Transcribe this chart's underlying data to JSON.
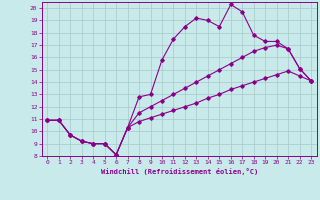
{
  "bg_color": "#c8eaea",
  "line_color": "#8b008b",
  "grid_color": "#a8c8c8",
  "xlabel": "Windchill (Refroidissement éolien,°C)",
  "xlabel_color": "#8b008b",
  "tick_color": "#8b008b",
  "xlim": [
    -0.5,
    23.5
  ],
  "ylim": [
    8,
    20.5
  ],
  "xticks": [
    0,
    1,
    2,
    3,
    4,
    5,
    6,
    7,
    8,
    9,
    10,
    11,
    12,
    13,
    14,
    15,
    16,
    17,
    18,
    19,
    20,
    21,
    22,
    23
  ],
  "yticks": [
    8,
    9,
    10,
    11,
    12,
    13,
    14,
    15,
    16,
    17,
    18,
    19,
    20
  ],
  "line1_x": [
    0,
    1,
    2,
    3,
    4,
    5,
    6,
    7,
    8,
    9,
    10,
    11,
    12,
    13,
    14,
    15,
    16,
    17,
    18,
    19,
    20,
    21,
    22,
    23
  ],
  "line1_y": [
    10.9,
    10.9,
    9.7,
    9.2,
    9.0,
    9.0,
    8.1,
    10.3,
    12.8,
    13.0,
    15.8,
    17.5,
    18.5,
    19.2,
    19.0,
    18.5,
    20.3,
    19.7,
    17.8,
    17.3,
    17.3,
    16.7,
    15.1,
    14.1
  ],
  "line2_x": [
    0,
    1,
    2,
    3,
    4,
    5,
    6,
    7,
    8,
    9,
    10,
    11,
    12,
    13,
    14,
    15,
    16,
    17,
    18,
    19,
    20,
    21,
    22,
    23
  ],
  "line2_y": [
    10.9,
    10.9,
    9.7,
    9.2,
    9.0,
    9.0,
    8.1,
    10.3,
    11.5,
    12.0,
    12.5,
    13.0,
    13.5,
    14.0,
    14.5,
    15.0,
    15.5,
    16.0,
    16.5,
    16.8,
    17.0,
    16.7,
    15.1,
    14.1
  ],
  "line3_x": [
    0,
    1,
    2,
    3,
    4,
    5,
    6,
    7,
    8,
    9,
    10,
    11,
    12,
    13,
    14,
    15,
    16,
    17,
    18,
    19,
    20,
    21,
    22,
    23
  ],
  "line3_y": [
    10.9,
    10.9,
    9.7,
    9.2,
    9.0,
    9.0,
    8.1,
    10.3,
    10.8,
    11.1,
    11.4,
    11.7,
    12.0,
    12.3,
    12.7,
    13.0,
    13.4,
    13.7,
    14.0,
    14.3,
    14.6,
    14.9,
    14.5,
    14.1
  ]
}
